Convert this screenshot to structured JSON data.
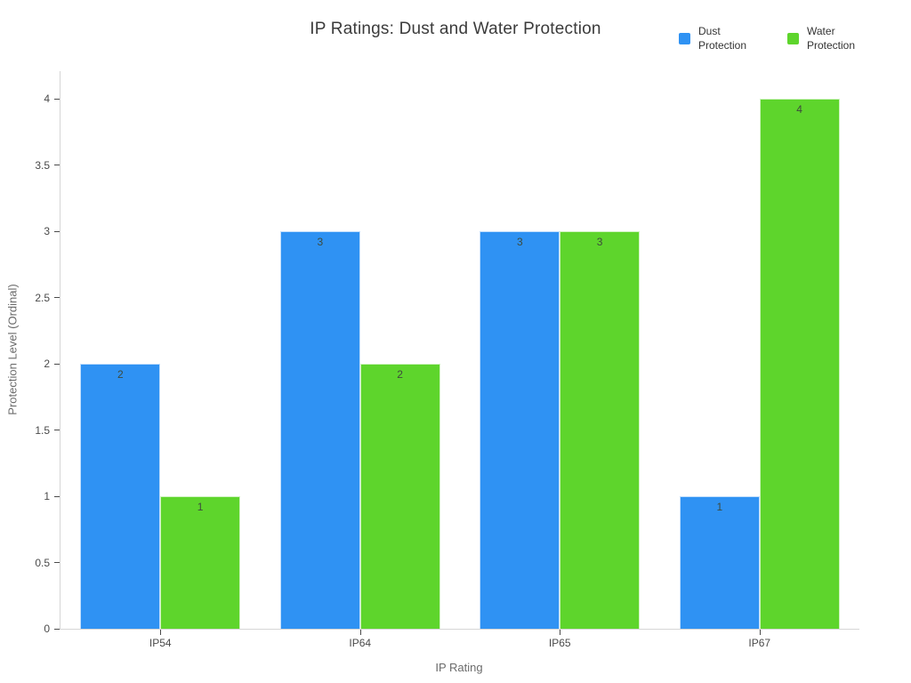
{
  "page": {
    "background": "#ffffff"
  },
  "chart_data": {
    "type": "bar",
    "title": "IP Ratings: Dust and Water Protection",
    "xlabel": "IP Rating",
    "ylabel": "Protection Level (Ordinal)",
    "categories": [
      "IP54",
      "IP64",
      "IP65",
      "IP67"
    ],
    "series": [
      {
        "name": "Dust Protection",
        "color": "#2f92f3",
        "values": [
          2,
          3,
          3,
          1
        ]
      },
      {
        "name": "Water Protection",
        "color": "#5ed52c",
        "values": [
          1,
          2,
          3,
          4
        ]
      }
    ],
    "ylim": [
      0,
      4
    ],
    "y_axis_headroom": 0.21,
    "yticks": [
      0,
      0.5,
      1,
      1.5,
      2,
      2.5,
      3,
      3.5,
      4
    ],
    "ytick_labels": [
      "0",
      "0.5",
      "1",
      "1.5",
      "2",
      "2.5",
      "3",
      "3.5",
      "4"
    ],
    "grid": false,
    "legend_position": "top-right",
    "bar_value_labels": [
      "2",
      "3",
      "3",
      "1",
      "1",
      "2",
      "3",
      "4"
    ],
    "axis_color": "#d6d6d6",
    "tick_color": "#4a4a4a",
    "label_color": "#3d4a3d"
  }
}
